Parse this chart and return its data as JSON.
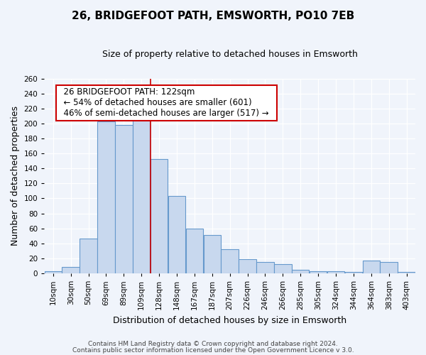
{
  "title": "26, BRIDGEFOOT PATH, EMSWORTH, PO10 7EB",
  "subtitle": "Size of property relative to detached houses in Emsworth",
  "xlabel": "Distribution of detached houses by size in Emsworth",
  "ylabel": "Number of detached properties",
  "bin_labels": [
    "10sqm",
    "30sqm",
    "50sqm",
    "69sqm",
    "89sqm",
    "109sqm",
    "128sqm",
    "148sqm",
    "167sqm",
    "187sqm",
    "207sqm",
    "226sqm",
    "246sqm",
    "266sqm",
    "285sqm",
    "305sqm",
    "324sqm",
    "344sqm",
    "364sqm",
    "383sqm",
    "403sqm"
  ],
  "n_bins": 21,
  "bar_heights": [
    3,
    9,
    46,
    203,
    198,
    205,
    153,
    103,
    60,
    51,
    32,
    19,
    15,
    12,
    5,
    3,
    3,
    2,
    17,
    15,
    2
  ],
  "bar_color": "#c8d8ee",
  "bar_edge_color": "#6699cc",
  "property_bin": 6,
  "property_label": "128sqm",
  "marker_color": "#cc0000",
  "annotation_line1": "26 BRIDGEFOOT PATH: 122sqm",
  "annotation_line2": "← 54% of detached houses are smaller (601)",
  "annotation_line3": "46% of semi-detached houses are larger (517) →",
  "annotation_box_edge_color": "#cc0000",
  "annotation_box_face_color": "#ffffff",
  "ylim_max": 260,
  "ytick_step": 20,
  "bg_color": "#f0f4fb",
  "grid_color": "#d8e0ea",
  "title_fontsize": 11,
  "subtitle_fontsize": 9,
  "axis_label_fontsize": 9,
  "tick_fontsize": 7.5,
  "annotation_fontsize": 8.5,
  "footer_fontsize": 6.5,
  "footer1": "Contains HM Land Registry data © Crown copyright and database right 2024.",
  "footer2": "Contains public sector information licensed under the Open Government Licence v 3.0."
}
